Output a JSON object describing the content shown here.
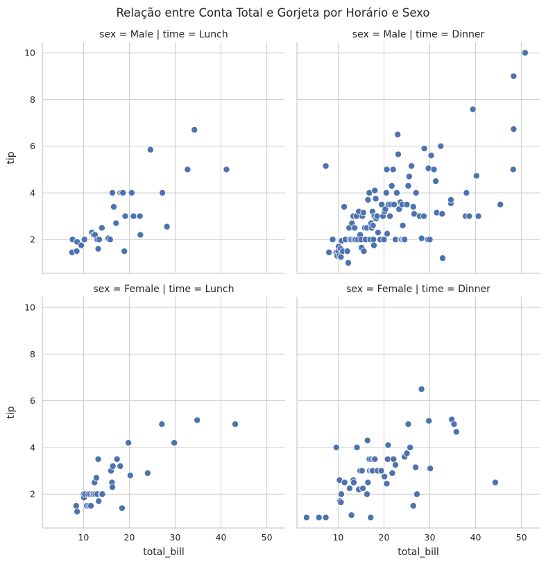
{
  "suptitle": "Relação entre Conta Total e Gorjeta por Horário e Sexo",
  "colors": {
    "point": "#4c72b0",
    "point_edge": "#ffffff",
    "grid": "#cccccc",
    "axis": "#cccccc",
    "text": "#262626"
  },
  "chart_data": [
    {
      "type": "scatter",
      "title": "sex = Male | time = Lunch",
      "xlabel": "",
      "ylabel": "tip",
      "xlim": [
        1,
        54
      ],
      "ylim": [
        0.55,
        10.45
      ],
      "xticks": [
        "10",
        "20",
        "30",
        "40",
        "50"
      ],
      "yticks": [
        "2",
        "4",
        "6",
        "8",
        "10"
      ],
      "points": [
        [
          7.5,
          1.45
        ],
        [
          7.6,
          2.0
        ],
        [
          8.5,
          1.5
        ],
        [
          8.6,
          1.9
        ],
        [
          9.5,
          1.75
        ],
        [
          10.2,
          2.0
        ],
        [
          11.8,
          2.3
        ],
        [
          12.2,
          2.2
        ],
        [
          12.5,
          2.2
        ],
        [
          13.0,
          2.0
        ],
        [
          13.2,
          1.6
        ],
        [
          13.4,
          2.0
        ],
        [
          14.0,
          2.5
        ],
        [
          15.4,
          2.05
        ],
        [
          15.8,
          2.0
        ],
        [
          16.3,
          4.0
        ],
        [
          16.6,
          3.4
        ],
        [
          17.1,
          2.7
        ],
        [
          18.0,
          4.0
        ],
        [
          18.3,
          4.0
        ],
        [
          18.6,
          4.0
        ],
        [
          18.9,
          1.5
        ],
        [
          19.1,
          3.0
        ],
        [
          20.5,
          4.0
        ],
        [
          20.9,
          3.0
        ],
        [
          22.3,
          3.0
        ],
        [
          22.4,
          2.2
        ],
        [
          24.6,
          5.85
        ],
        [
          27.2,
          4.0
        ],
        [
          28.2,
          2.55
        ],
        [
          32.7,
          5.0
        ],
        [
          34.2,
          6.7
        ],
        [
          41.2,
          5.0
        ]
      ]
    },
    {
      "type": "scatter",
      "title": "sex = Male | time = Dinner",
      "xlabel": "",
      "ylabel": "",
      "xlim": [
        1,
        54
      ],
      "ylim": [
        0.55,
        10.45
      ],
      "xticks": [
        "10",
        "20",
        "30",
        "40",
        "50"
      ],
      "yticks": [
        "2",
        "4",
        "6",
        "8",
        "10"
      ],
      "points": [
        [
          7.3,
          5.15
        ],
        [
          8.0,
          1.45
        ],
        [
          8.8,
          2.0
        ],
        [
          9.6,
          1.45
        ],
        [
          9.8,
          1.3
        ],
        [
          10.0,
          1.5
        ],
        [
          10.1,
          1.7
        ],
        [
          10.3,
          1.3
        ],
        [
          10.5,
          1.6
        ],
        [
          10.6,
          1.25
        ],
        [
          10.8,
          1.95
        ],
        [
          11.0,
          1.5
        ],
        [
          11.3,
          3.4
        ],
        [
          11.6,
          2.0
        ],
        [
          12.0,
          1.5
        ],
        [
          12.2,
          1.0
        ],
        [
          12.4,
          2.5
        ],
        [
          12.6,
          2.0
        ],
        [
          12.9,
          2.0
        ],
        [
          13.0,
          2.7
        ],
        [
          13.3,
          3.0
        ],
        [
          13.5,
          2.0
        ],
        [
          13.6,
          2.5
        ],
        [
          13.8,
          2.0
        ],
        [
          14.0,
          3.0
        ],
        [
          14.3,
          2.0
        ],
        [
          14.5,
          3.2
        ],
        [
          14.8,
          2.2
        ],
        [
          15.0,
          2.0
        ],
        [
          15.1,
          1.65
        ],
        [
          15.3,
          3.0
        ],
        [
          15.5,
          3.15
        ],
        [
          15.6,
          1.5
        ],
        [
          15.8,
          2.5
        ],
        [
          16.0,
          2.0
        ],
        [
          16.3,
          2.5
        ],
        [
          16.5,
          3.7
        ],
        [
          16.8,
          4.0
        ],
        [
          17.0,
          2.0
        ],
        [
          17.2,
          2.7
        ],
        [
          17.3,
          2.5
        ],
        [
          17.5,
          3.2
        ],
        [
          17.6,
          2.6
        ],
        [
          17.7,
          2.0
        ],
        [
          17.8,
          1.75
        ],
        [
          17.9,
          3.0
        ],
        [
          18.0,
          4.1
        ],
        [
          18.2,
          3.75
        ],
        [
          18.3,
          2.9
        ],
        [
          18.5,
          3.0
        ],
        [
          18.7,
          2.3
        ],
        [
          19.2,
          2.0
        ],
        [
          19.5,
          3.5
        ],
        [
          19.8,
          3.0
        ],
        [
          20.0,
          2.0
        ],
        [
          20.1,
          3.2
        ],
        [
          20.3,
          3.3
        ],
        [
          20.5,
          4.0
        ],
        [
          20.6,
          5.0
        ],
        [
          20.7,
          2.25
        ],
        [
          21.0,
          3.5
        ],
        [
          21.3,
          3.0
        ],
        [
          21.5,
          3.5
        ],
        [
          21.7,
          4.3
        ],
        [
          22.0,
          5.0
        ],
        [
          22.2,
          3.5
        ],
        [
          22.5,
          2.0
        ],
        [
          22.8,
          4.0
        ],
        [
          23.0,
          6.5
        ],
        [
          23.1,
          5.65
        ],
        [
          23.3,
          3.3
        ],
        [
          23.6,
          3.6
        ],
        [
          23.7,
          2.0
        ],
        [
          23.9,
          2.0
        ],
        [
          24.0,
          3.5
        ],
        [
          24.1,
          2.6
        ],
        [
          24.3,
          2.0
        ],
        [
          24.5,
          2.0
        ],
        [
          25.0,
          3.5
        ],
        [
          25.3,
          4.3
        ],
        [
          25.5,
          4.7
        ],
        [
          26.0,
          5.15
        ],
        [
          26.4,
          3.4
        ],
        [
          26.6,
          3.1
        ],
        [
          27.0,
          4.0
        ],
        [
          27.8,
          3.0
        ],
        [
          28.2,
          2.05
        ],
        [
          28.7,
          3.0
        ],
        [
          28.8,
          5.9
        ],
        [
          29.6,
          2.0
        ],
        [
          29.7,
          5.05
        ],
        [
          30.0,
          2.0
        ],
        [
          30.3,
          5.6
        ],
        [
          30.9,
          5.0
        ],
        [
          31.3,
          4.5
        ],
        [
          31.5,
          3.15
        ],
        [
          32.4,
          6.0
        ],
        [
          32.7,
          3.1
        ],
        [
          32.8,
          1.2
        ],
        [
          34.6,
          3.55
        ],
        [
          34.6,
          3.7
        ],
        [
          37.8,
          3.0
        ],
        [
          38.0,
          4.0
        ],
        [
          38.6,
          3.0
        ],
        [
          39.4,
          7.58
        ],
        [
          40.2,
          4.73
        ],
        [
          40.6,
          3.0
        ],
        [
          45.4,
          3.5
        ],
        [
          48.2,
          5.0
        ],
        [
          48.3,
          6.73
        ],
        [
          48.3,
          9.0
        ],
        [
          50.8,
          10.0
        ]
      ]
    },
    {
      "type": "scatter",
      "title": "sex = Female | time = Lunch",
      "xlabel": "total_bill",
      "ylabel": "tip",
      "xlim": [
        1,
        54
      ],
      "ylim": [
        0.55,
        10.45
      ],
      "xticks": [
        "10",
        "20",
        "30",
        "40",
        "50"
      ],
      "yticks": [
        "2",
        "4",
        "6",
        "8",
        "10"
      ],
      "points": [
        [
          8.4,
          1.5
        ],
        [
          8.6,
          1.25
        ],
        [
          10.0,
          2.0
        ],
        [
          10.1,
          1.85
        ],
        [
          10.3,
          2.0
        ],
        [
          10.7,
          1.5
        ],
        [
          11.0,
          2.0
        ],
        [
          11.2,
          1.5
        ],
        [
          11.4,
          2.0
        ],
        [
          11.6,
          1.5
        ],
        [
          11.9,
          2.0
        ],
        [
          12.2,
          2.0
        ],
        [
          12.4,
          2.5
        ],
        [
          12.6,
          2.0
        ],
        [
          12.8,
          2.7
        ],
        [
          13.0,
          2.0
        ],
        [
          13.2,
          3.5
        ],
        [
          13.3,
          1.7
        ],
        [
          13.9,
          2.0
        ],
        [
          14.1,
          2.0
        ],
        [
          16.0,
          3.0
        ],
        [
          16.2,
          2.5
        ],
        [
          16.3,
          2.3
        ],
        [
          16.4,
          3.2
        ],
        [
          17.3,
          3.5
        ],
        [
          18.0,
          3.2
        ],
        [
          18.4,
          1.4
        ],
        [
          19.8,
          4.2
        ],
        [
          20.2,
          2.8
        ],
        [
          24.0,
          2.9
        ],
        [
          27.1,
          5.0
        ],
        [
          29.8,
          4.2
        ],
        [
          34.8,
          5.17
        ],
        [
          43.1,
          5.0
        ]
      ]
    },
    {
      "type": "scatter",
      "title": "sex = Female | time = Dinner",
      "xlabel": "total_bill",
      "ylabel": "",
      "xlim": [
        1,
        54
      ],
      "ylim": [
        0.55,
        10.45
      ],
      "xticks": [
        "10",
        "20",
        "30",
        "40",
        "50"
      ],
      "yticks": [
        "2",
        "4",
        "6",
        "8",
        "10"
      ],
      "points": [
        [
          3.1,
          1.0
        ],
        [
          5.8,
          1.0
        ],
        [
          7.3,
          1.0
        ],
        [
          9.6,
          4.0
        ],
        [
          10.3,
          2.6
        ],
        [
          10.4,
          1.7
        ],
        [
          10.6,
          1.65
        ],
        [
          10.7,
          2.0
        ],
        [
          11.4,
          2.5
        ],
        [
          12.5,
          2.25
        ],
        [
          12.9,
          1.1
        ],
        [
          13.3,
          2.6
        ],
        [
          13.4,
          2.5
        ],
        [
          14.1,
          4.0
        ],
        [
          14.5,
          2.2
        ],
        [
          14.8,
          3.0
        ],
        [
          15.2,
          3.0
        ],
        [
          15.4,
          2.25
        ],
        [
          16.3,
          2.0
        ],
        [
          16.4,
          4.3
        ],
        [
          16.5,
          2.5
        ],
        [
          16.8,
          3.5
        ],
        [
          16.9,
          3.0
        ],
        [
          17.1,
          1.0
        ],
        [
          17.2,
          3.5
        ],
        [
          17.3,
          3.0
        ],
        [
          17.5,
          3.0
        ],
        [
          17.8,
          3.5
        ],
        [
          18.0,
          3.5
        ],
        [
          18.6,
          3.0
        ],
        [
          19.4,
          3.0
        ],
        [
          20.1,
          2.75
        ],
        [
          20.6,
          2.45
        ],
        [
          20.8,
          3.5
        ],
        [
          20.9,
          4.1
        ],
        [
          21.8,
          2.9
        ],
        [
          22.1,
          3.5
        ],
        [
          22.5,
          3.25
        ],
        [
          24.5,
          3.6
        ],
        [
          25.0,
          3.75
        ],
        [
          25.3,
          5.0
        ],
        [
          25.7,
          4.0
        ],
        [
          26.4,
          1.5
        ],
        [
          26.9,
          3.15
        ],
        [
          27.2,
          2.0
        ],
        [
          28.2,
          6.5
        ],
        [
          29.8,
          5.14
        ],
        [
          30.1,
          3.1
        ],
        [
          34.8,
          5.2
        ],
        [
          35.3,
          5.0
        ],
        [
          35.8,
          4.67
        ],
        [
          44.3,
          2.5
        ]
      ]
    }
  ]
}
